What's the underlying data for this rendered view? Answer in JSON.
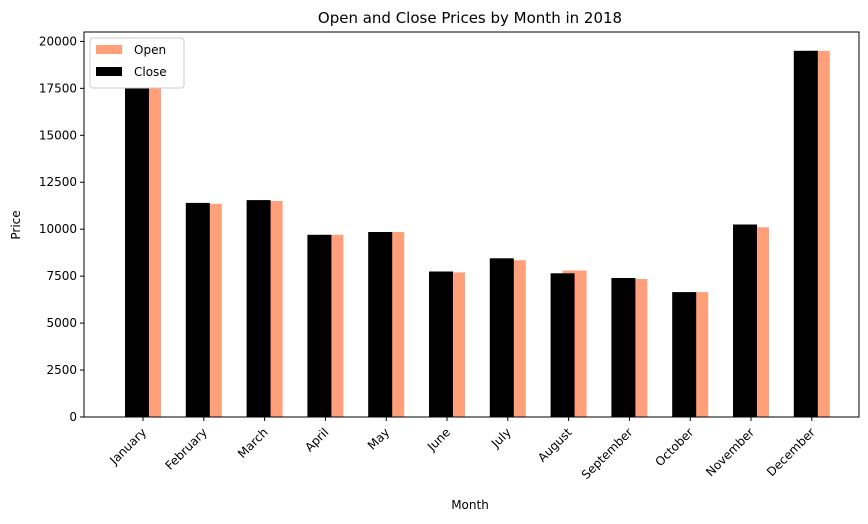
{
  "chart_data": {
    "type": "bar",
    "title": "Open and Close Prices by Month in 2018",
    "xlabel": "Month",
    "ylabel": "Price",
    "ylim": [
      0,
      20500
    ],
    "yticks": [
      0,
      2500,
      5000,
      7500,
      10000,
      12500,
      15000,
      17500,
      20000
    ],
    "categories": [
      "January",
      "February",
      "March",
      "April",
      "May",
      "June",
      "July",
      "August",
      "September",
      "October",
      "November",
      "December"
    ],
    "series": [
      {
        "name": "Open",
        "color": "#FFA07A",
        "values": [
          17500,
          11350,
          11500,
          9700,
          9850,
          7700,
          8350,
          7800,
          7350,
          6650,
          10100,
          19500
        ]
      },
      {
        "name": "Close",
        "color": "#000000",
        "values": [
          17500,
          11400,
          11550,
          9700,
          9850,
          7750,
          8450,
          7650,
          7400,
          6650,
          10250,
          19500
        ]
      }
    ],
    "legend": "top-left",
    "grid": false
  }
}
